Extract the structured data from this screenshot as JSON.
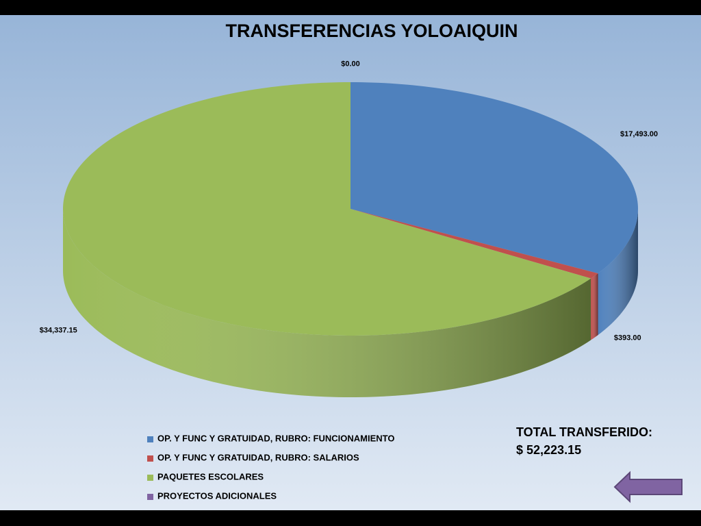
{
  "chart_data": {
    "type": "pie",
    "title": "TRANSFERENCIAS YOLOAIQUIN",
    "categories": [
      "OP. Y FUNC Y GRATUIDAD,  RUBRO: FUNCIONAMIENTO",
      "OP. Y FUNC Y GRATUIDAD,  RUBRO: SALARIOS",
      "PAQUETES ESCOLARES",
      "PROYECTOS  ADICIONALES"
    ],
    "values": [
      17493,
      393,
      34337.15,
      0
    ],
    "value_labels": [
      "$17,493.00",
      "$393.00",
      "$34,337.15",
      "$0.00"
    ],
    "colors": [
      "#4f81bd",
      "#c0504d",
      "#9bbb59",
      "#8064a2"
    ],
    "annotations": [
      "TOTAL TRANSFERIDO:",
      "$ 52,223.15"
    ]
  }
}
